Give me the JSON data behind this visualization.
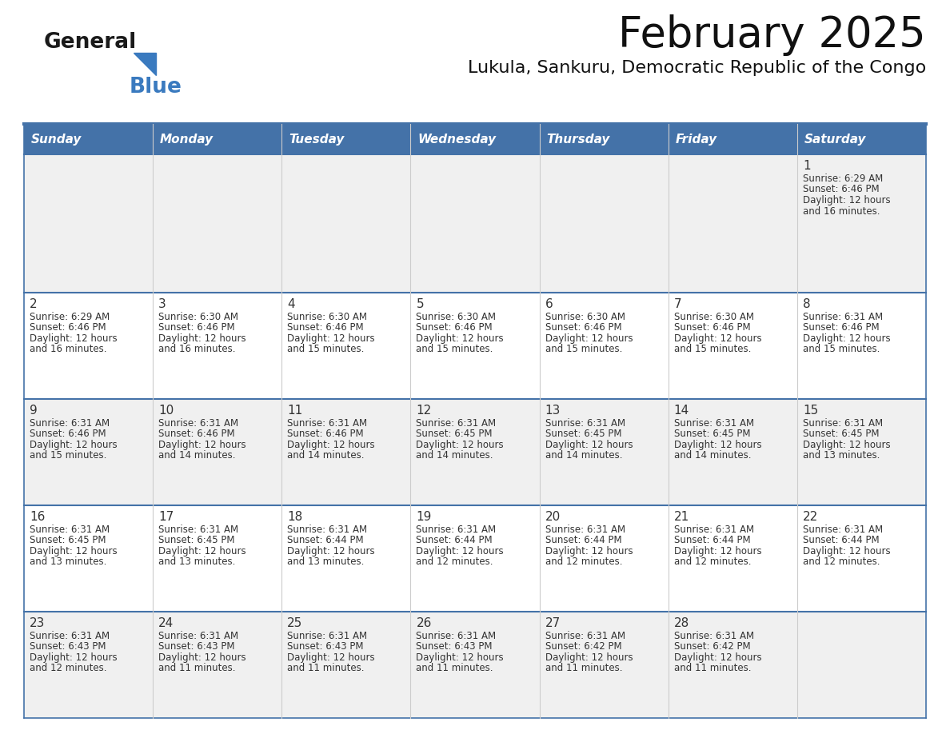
{
  "title": "February 2025",
  "subtitle": "Lukula, Sankuru, Democratic Republic of the Congo",
  "header_bg_color": "#4472a8",
  "header_text_color": "#ffffff",
  "cell_bg_row0": "#f0f0f0",
  "cell_bg_row1": "#ffffff",
  "cell_bg_row2": "#f0f0f0",
  "cell_bg_row3": "#ffffff",
  "cell_bg_row4": "#f0f0f0",
  "cell_border_color": "#4472a8",
  "grid_line_color": "#cccccc",
  "day_number_color": "#333333",
  "info_text_color": "#333333",
  "title_color": "#111111",
  "subtitle_color": "#111111",
  "days_of_week": [
    "Sunday",
    "Monday",
    "Tuesday",
    "Wednesday",
    "Thursday",
    "Friday",
    "Saturday"
  ],
  "calendar_data": [
    [
      null,
      null,
      null,
      null,
      null,
      null,
      {
        "day": 1,
        "sunrise": "6:29 AM",
        "sunset": "6:46 PM",
        "daylight_line1": "Daylight: 12 hours",
        "daylight_line2": "and 16 minutes."
      }
    ],
    [
      {
        "day": 2,
        "sunrise": "6:29 AM",
        "sunset": "6:46 PM",
        "daylight_line1": "Daylight: 12 hours",
        "daylight_line2": "and 16 minutes."
      },
      {
        "day": 3,
        "sunrise": "6:30 AM",
        "sunset": "6:46 PM",
        "daylight_line1": "Daylight: 12 hours",
        "daylight_line2": "and 16 minutes."
      },
      {
        "day": 4,
        "sunrise": "6:30 AM",
        "sunset": "6:46 PM",
        "daylight_line1": "Daylight: 12 hours",
        "daylight_line2": "and 15 minutes."
      },
      {
        "day": 5,
        "sunrise": "6:30 AM",
        "sunset": "6:46 PM",
        "daylight_line1": "Daylight: 12 hours",
        "daylight_line2": "and 15 minutes."
      },
      {
        "day": 6,
        "sunrise": "6:30 AM",
        "sunset": "6:46 PM",
        "daylight_line1": "Daylight: 12 hours",
        "daylight_line2": "and 15 minutes."
      },
      {
        "day": 7,
        "sunrise": "6:30 AM",
        "sunset": "6:46 PM",
        "daylight_line1": "Daylight: 12 hours",
        "daylight_line2": "and 15 minutes."
      },
      {
        "day": 8,
        "sunrise": "6:31 AM",
        "sunset": "6:46 PM",
        "daylight_line1": "Daylight: 12 hours",
        "daylight_line2": "and 15 minutes."
      }
    ],
    [
      {
        "day": 9,
        "sunrise": "6:31 AM",
        "sunset": "6:46 PM",
        "daylight_line1": "Daylight: 12 hours",
        "daylight_line2": "and 15 minutes."
      },
      {
        "day": 10,
        "sunrise": "6:31 AM",
        "sunset": "6:46 PM",
        "daylight_line1": "Daylight: 12 hours",
        "daylight_line2": "and 14 minutes."
      },
      {
        "day": 11,
        "sunrise": "6:31 AM",
        "sunset": "6:46 PM",
        "daylight_line1": "Daylight: 12 hours",
        "daylight_line2": "and 14 minutes."
      },
      {
        "day": 12,
        "sunrise": "6:31 AM",
        "sunset": "6:45 PM",
        "daylight_line1": "Daylight: 12 hours",
        "daylight_line2": "and 14 minutes."
      },
      {
        "day": 13,
        "sunrise": "6:31 AM",
        "sunset": "6:45 PM",
        "daylight_line1": "Daylight: 12 hours",
        "daylight_line2": "and 14 minutes."
      },
      {
        "day": 14,
        "sunrise": "6:31 AM",
        "sunset": "6:45 PM",
        "daylight_line1": "Daylight: 12 hours",
        "daylight_line2": "and 14 minutes."
      },
      {
        "day": 15,
        "sunrise": "6:31 AM",
        "sunset": "6:45 PM",
        "daylight_line1": "Daylight: 12 hours",
        "daylight_line2": "and 13 minutes."
      }
    ],
    [
      {
        "day": 16,
        "sunrise": "6:31 AM",
        "sunset": "6:45 PM",
        "daylight_line1": "Daylight: 12 hours",
        "daylight_line2": "and 13 minutes."
      },
      {
        "day": 17,
        "sunrise": "6:31 AM",
        "sunset": "6:45 PM",
        "daylight_line1": "Daylight: 12 hours",
        "daylight_line2": "and 13 minutes."
      },
      {
        "day": 18,
        "sunrise": "6:31 AM",
        "sunset": "6:44 PM",
        "daylight_line1": "Daylight: 12 hours",
        "daylight_line2": "and 13 minutes."
      },
      {
        "day": 19,
        "sunrise": "6:31 AM",
        "sunset": "6:44 PM",
        "daylight_line1": "Daylight: 12 hours",
        "daylight_line2": "and 12 minutes."
      },
      {
        "day": 20,
        "sunrise": "6:31 AM",
        "sunset": "6:44 PM",
        "daylight_line1": "Daylight: 12 hours",
        "daylight_line2": "and 12 minutes."
      },
      {
        "day": 21,
        "sunrise": "6:31 AM",
        "sunset": "6:44 PM",
        "daylight_line1": "Daylight: 12 hours",
        "daylight_line2": "and 12 minutes."
      },
      {
        "day": 22,
        "sunrise": "6:31 AM",
        "sunset": "6:44 PM",
        "daylight_line1": "Daylight: 12 hours",
        "daylight_line2": "and 12 minutes."
      }
    ],
    [
      {
        "day": 23,
        "sunrise": "6:31 AM",
        "sunset": "6:43 PM",
        "daylight_line1": "Daylight: 12 hours",
        "daylight_line2": "and 12 minutes."
      },
      {
        "day": 24,
        "sunrise": "6:31 AM",
        "sunset": "6:43 PM",
        "daylight_line1": "Daylight: 12 hours",
        "daylight_line2": "and 11 minutes."
      },
      {
        "day": 25,
        "sunrise": "6:31 AM",
        "sunset": "6:43 PM",
        "daylight_line1": "Daylight: 12 hours",
        "daylight_line2": "and 11 minutes."
      },
      {
        "day": 26,
        "sunrise": "6:31 AM",
        "sunset": "6:43 PM",
        "daylight_line1": "Daylight: 12 hours",
        "daylight_line2": "and 11 minutes."
      },
      {
        "day": 27,
        "sunrise": "6:31 AM",
        "sunset": "6:42 PM",
        "daylight_line1": "Daylight: 12 hours",
        "daylight_line2": "and 11 minutes."
      },
      {
        "day": 28,
        "sunrise": "6:31 AM",
        "sunset": "6:42 PM",
        "daylight_line1": "Daylight: 12 hours",
        "daylight_line2": "and 11 minutes."
      },
      null
    ]
  ]
}
